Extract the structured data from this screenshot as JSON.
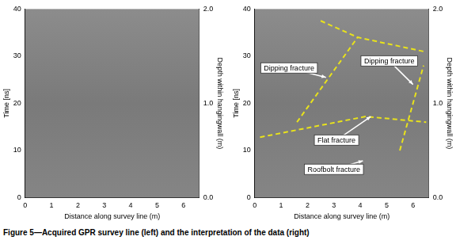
{
  "caption": "Figure 5—Acquired GPR survey line (left) and the interpretation of the data (right)",
  "chart_data": [
    {
      "type": "scatter",
      "xlabel": "Distance along survey line (m)",
      "ylabel": "Time [ns]",
      "y2label": "Depth within hangingwall (m)",
      "xlim": [
        0,
        6.6
      ],
      "xticks": [
        0,
        1,
        2,
        3,
        4,
        5,
        6
      ],
      "ylim": [
        0,
        40
      ],
      "yticks": [
        0,
        10,
        20,
        30,
        40
      ],
      "y2lim": [
        0,
        2
      ],
      "y2ticks": [
        {
          "value": 0,
          "label": "0.0"
        },
        {
          "value": 1,
          "label": "1.0"
        },
        {
          "value": 2,
          "label": "2.0"
        }
      ],
      "grid": false,
      "series": [],
      "annotations": []
    },
    {
      "type": "scatter",
      "xlabel": "Distance along survey line (m)",
      "ylabel": "Time [ns]",
      "y2label": "Depth within hangingwall (m)",
      "xlim": [
        0,
        6.6
      ],
      "xticks": [
        0,
        1,
        2,
        3,
        4,
        5,
        6
      ],
      "ylim": [
        0,
        40
      ],
      "yticks": [
        0,
        10,
        20,
        30,
        40
      ],
      "y2lim": [
        0,
        2
      ],
      "y2ticks": [
        {
          "value": 0,
          "label": "0.0"
        },
        {
          "value": 1,
          "label": "1.0"
        },
        {
          "value": 2,
          "label": "2.0"
        }
      ],
      "grid": false,
      "series": [
        {
          "color": "#e8e21c",
          "line_style": "dashed",
          "x": [
            0.2,
            4.2,
            6.5
          ],
          "y": [
            12.8,
            17.2,
            16.0
          ]
        },
        {
          "color": "#e8e21c",
          "line_style": "dashed",
          "x": [
            1.6,
            3.9
          ],
          "y": [
            16.0,
            34.0
          ]
        },
        {
          "color": "#e8e21c",
          "line_style": "dashed",
          "x": [
            2.5,
            3.9,
            6.4
          ],
          "y": [
            37.5,
            34.0,
            31.0
          ]
        },
        {
          "color": "#e8e21c",
          "line_style": "dashed",
          "x": [
            5.5,
            6.4
          ],
          "y": [
            10.0,
            28.0
          ]
        }
      ],
      "annotations": [
        {
          "text": "Dipping fracture",
          "x": 1.3,
          "y": 27.5,
          "target_x": 2.7,
          "target_y": 25.5
        },
        {
          "text": "Dipping fracture",
          "x": 5.1,
          "y": 29.0,
          "target_x": 6.0,
          "target_y": 24.0
        },
        {
          "text": "Flat fracture",
          "x": 3.1,
          "y": 12.2,
          "target_x": 4.4,
          "target_y": 17.2
        },
        {
          "text": "Roofbolt fracture",
          "x": 3.0,
          "y": 6.0,
          "target_x": 4.1,
          "target_y": 7.8
        }
      ]
    }
  ]
}
